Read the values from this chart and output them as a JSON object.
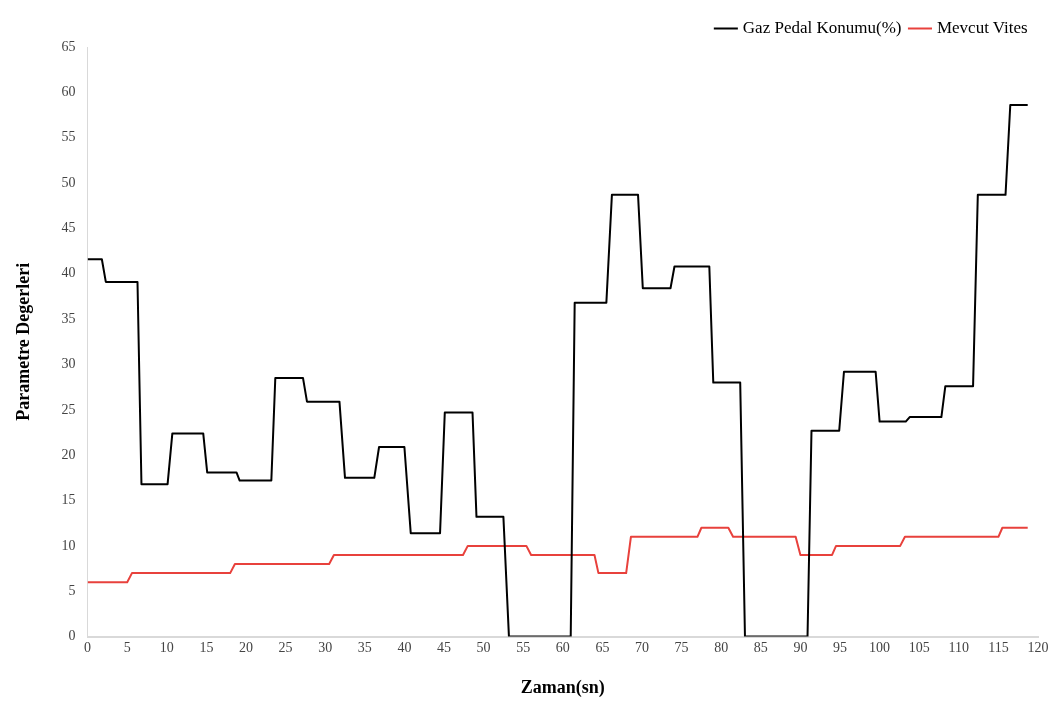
{
  "chart_data": {
    "type": "line",
    "xlabel": "Zaman(sn)",
    "ylabel": "Parametre Degerleri",
    "xlim": [
      0,
      120
    ],
    "xticks": [
      0,
      5,
      10,
      15,
      20,
      25,
      30,
      35,
      40,
      45,
      50,
      55,
      60,
      65,
      70,
      75,
      80,
      85,
      90,
      95,
      100,
      105,
      110,
      115,
      120
    ],
    "ylim": [
      0,
      65
    ],
    "yticks": [
      0,
      5,
      10,
      15,
      20,
      25,
      30,
      35,
      40,
      45,
      50,
      55,
      60,
      65
    ],
    "grid": false,
    "legend": "top right",
    "marker": "none",
    "line_style": "solid",
    "series": [
      {
        "name": "Gaz Pedal Konumu(%)",
        "color": "#000000",
        "x": [
          0,
          1.8,
          2.3,
          6.3,
          6.8,
          10.1,
          10.7,
          14.6,
          15.1,
          18.8,
          19.2,
          23.2,
          23.7,
          27.2,
          27.7,
          31.8,
          32.5,
          36.2,
          36.8,
          40,
          40.8,
          44.5,
          45.1,
          48.6,
          49.1,
          52.5,
          53.2,
          61,
          61.5,
          65.5,
          66.2,
          69.5,
          70.1,
          73.6,
          74.1,
          78.5,
          79,
          82.4,
          83,
          90.9,
          91.4,
          94.9,
          95.5,
          99.5,
          100,
          103.3,
          103.8,
          107.8,
          108.3,
          111.8,
          112.4,
          115.9,
          116.5,
          118.7
        ],
        "values": [
          41.6,
          41.6,
          39.1,
          39.1,
          16.8,
          16.8,
          22.4,
          22.4,
          18.1,
          18.1,
          17.2,
          17.2,
          28.5,
          28.5,
          25.9,
          25.9,
          17.5,
          17.5,
          20.9,
          20.9,
          11.4,
          11.4,
          24.7,
          24.7,
          13.2,
          13.2,
          0,
          0,
          36.8,
          36.8,
          48.7,
          48.7,
          38.4,
          38.4,
          40.8,
          40.8,
          28,
          28,
          0,
          0,
          22.7,
          22.7,
          29.2,
          29.2,
          23.7,
          23.7,
          24.2,
          24.2,
          27.6,
          27.6,
          48.7,
          48.7,
          58.6,
          58.6
        ]
      },
      {
        "name": "Mevcut Vites",
        "color": "#e8413c",
        "x": [
          0,
          5,
          5.6,
          18,
          18.6,
          30.5,
          31.1,
          47.4,
          48,
          55.4,
          56,
          64,
          64.5,
          68,
          68.6,
          77,
          77.5,
          80.9,
          81.5,
          89.4,
          90,
          94,
          94.5,
          102.6,
          103.2,
          115,
          115.5,
          118.7
        ],
        "values": [
          6,
          6,
          7,
          7,
          8,
          8,
          9,
          9,
          10,
          10,
          9,
          9,
          7,
          7,
          11,
          11,
          12,
          12,
          11,
          11,
          9,
          9,
          10,
          10,
          11,
          11,
          12,
          12
        ]
      }
    ]
  }
}
